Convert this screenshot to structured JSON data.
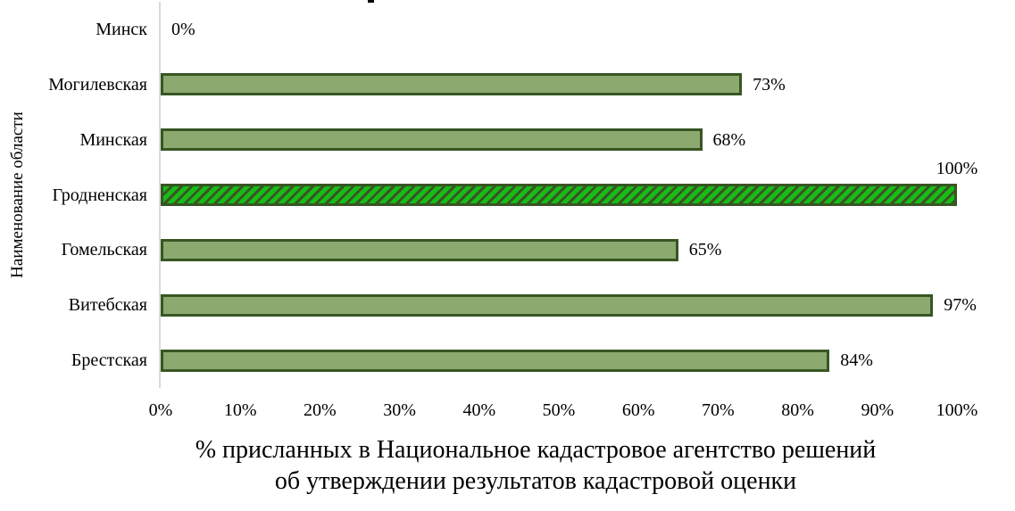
{
  "chart_data": {
    "type": "bar",
    "orientation": "horizontal",
    "title": "% присланных в Национальное кадастровое агентство решений об утверждении результатов кадастровой оценки",
    "title_lines": [
      "% присланных в Национальное кадастровое агентство решений",
      "об утверждении результатов кадастровой оценки"
    ],
    "ylabel": "Наименование области",
    "xlabel": "",
    "xlim": [
      0,
      100
    ],
    "x_ticks": [
      "0%",
      "10%",
      "20%",
      "30%",
      "40%",
      "50%",
      "60%",
      "70%",
      "80%",
      "90%",
      "100%"
    ],
    "grid": false,
    "legend": false,
    "categories": [
      "Минск",
      "Могилевская",
      "Минская",
      "Гродненская",
      "Гомельская",
      "Витебская",
      "Брестская"
    ],
    "values": [
      0,
      73,
      68,
      100,
      65,
      97,
      84
    ],
    "rows": [
      {
        "category": "Минск",
        "value": 0,
        "label": "0%",
        "hatched": false
      },
      {
        "category": "Могилевская",
        "value": 73,
        "label": "73%",
        "hatched": false
      },
      {
        "category": "Минская",
        "value": 68,
        "label": "68%",
        "hatched": false
      },
      {
        "category": "Гродненская",
        "value": 100,
        "label": "100%",
        "hatched": true,
        "label_position": "above-end"
      },
      {
        "category": "Гомельская",
        "value": 65,
        "label": "65%",
        "hatched": false
      },
      {
        "category": "Витебская",
        "value": 97,
        "label": "97%",
        "hatched": false
      },
      {
        "category": "Брестская",
        "value": 84,
        "label": "84%",
        "hatched": false
      }
    ],
    "highlighted_category": "Гродненская",
    "colors": {
      "bar_fill": "#8CAA6F",
      "bar_border": "#375623",
      "hatch_fill": "#16BD16",
      "hatch_stripe": "#3D5226",
      "axis_line": "#D9D9D9",
      "text": "#000000"
    }
  }
}
